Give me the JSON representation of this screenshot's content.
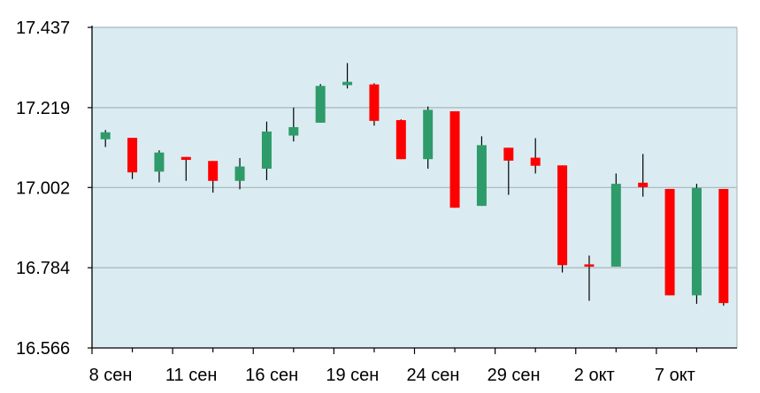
{
  "chart_data": {
    "type": "candlestick",
    "title": "",
    "xlabel": "",
    "ylabel": "",
    "ylim": [
      16.566,
      17.437
    ],
    "yticks": [
      "17.437",
      "17.219",
      "17.002",
      "16.784",
      "16.566"
    ],
    "xticks": [
      {
        "label": "8 сен",
        "index": 0
      },
      {
        "label": "11 сен",
        "index": 2
      },
      {
        "label": "16 сен",
        "index": 4
      },
      {
        "label": "19 сен",
        "index": 6
      },
      {
        "label": "24 сен",
        "index": 8
      },
      {
        "label": "29 сен",
        "index": 10
      },
      {
        "label": "2 окт",
        "index": 12
      },
      {
        "label": "7 окт",
        "index": 14
      }
    ],
    "grid": true,
    "colors": {
      "up": "#2e9b6a",
      "down": "#ff0000",
      "plot_background": "#daecf2",
      "grid": "#a9b4bb",
      "axis": "#000000",
      "wick": "#000000"
    },
    "candles": [
      {
        "open": 17.133,
        "close": 17.152,
        "high": 17.158,
        "low": 17.112
      },
      {
        "open": 17.137,
        "close": 17.043,
        "high": 17.137,
        "low": 17.025
      },
      {
        "open": 17.045,
        "close": 17.097,
        "high": 17.103,
        "low": 17.016
      },
      {
        "open": 17.085,
        "close": 17.077,
        "high": 17.085,
        "low": 17.02
      },
      {
        "open": 17.074,
        "close": 17.02,
        "high": 17.074,
        "low": 16.988
      },
      {
        "open": 17.02,
        "close": 17.059,
        "high": 17.082,
        "low": 16.997
      },
      {
        "open": 17.053,
        "close": 17.154,
        "high": 17.181,
        "low": 17.022
      },
      {
        "open": 17.143,
        "close": 17.166,
        "high": 17.219,
        "low": 17.127
      },
      {
        "open": 17.178,
        "close": 17.278,
        "high": 17.283,
        "low": 17.178
      },
      {
        "open": 17.28,
        "close": 17.289,
        "high": 17.34,
        "low": 17.271
      },
      {
        "open": 17.282,
        "close": 17.183,
        "high": 17.285,
        "low": 17.17
      },
      {
        "open": 17.185,
        "close": 17.079,
        "high": 17.187,
        "low": 17.079
      },
      {
        "open": 17.079,
        "close": 17.213,
        "high": 17.222,
        "low": 17.053
      },
      {
        "open": 17.209,
        "close": 16.947,
        "high": 17.209,
        "low": 16.947
      },
      {
        "open": 16.952,
        "close": 17.117,
        "high": 17.141,
        "low": 16.952
      },
      {
        "open": 17.11,
        "close": 17.075,
        "high": 17.11,
        "low": 16.982
      },
      {
        "open": 17.083,
        "close": 17.061,
        "high": 17.136,
        "low": 17.04
      },
      {
        "open": 17.062,
        "close": 16.791,
        "high": 17.062,
        "low": 16.771
      },
      {
        "open": 16.793,
        "close": 16.787,
        "high": 16.817,
        "low": 16.694
      },
      {
        "open": 16.787,
        "close": 17.012,
        "high": 17.04,
        "low": 16.787
      },
      {
        "open": 17.015,
        "close": 17.003,
        "high": 17.093,
        "low": 16.977
      },
      {
        "open": 16.998,
        "close": 16.709,
        "high": 16.998,
        "low": 16.709
      },
      {
        "open": 16.709,
        "close": 17.001,
        "high": 17.012,
        "low": 16.686
      },
      {
        "open": 16.998,
        "close": 16.688,
        "high": 16.998,
        "low": 16.681
      }
    ]
  }
}
